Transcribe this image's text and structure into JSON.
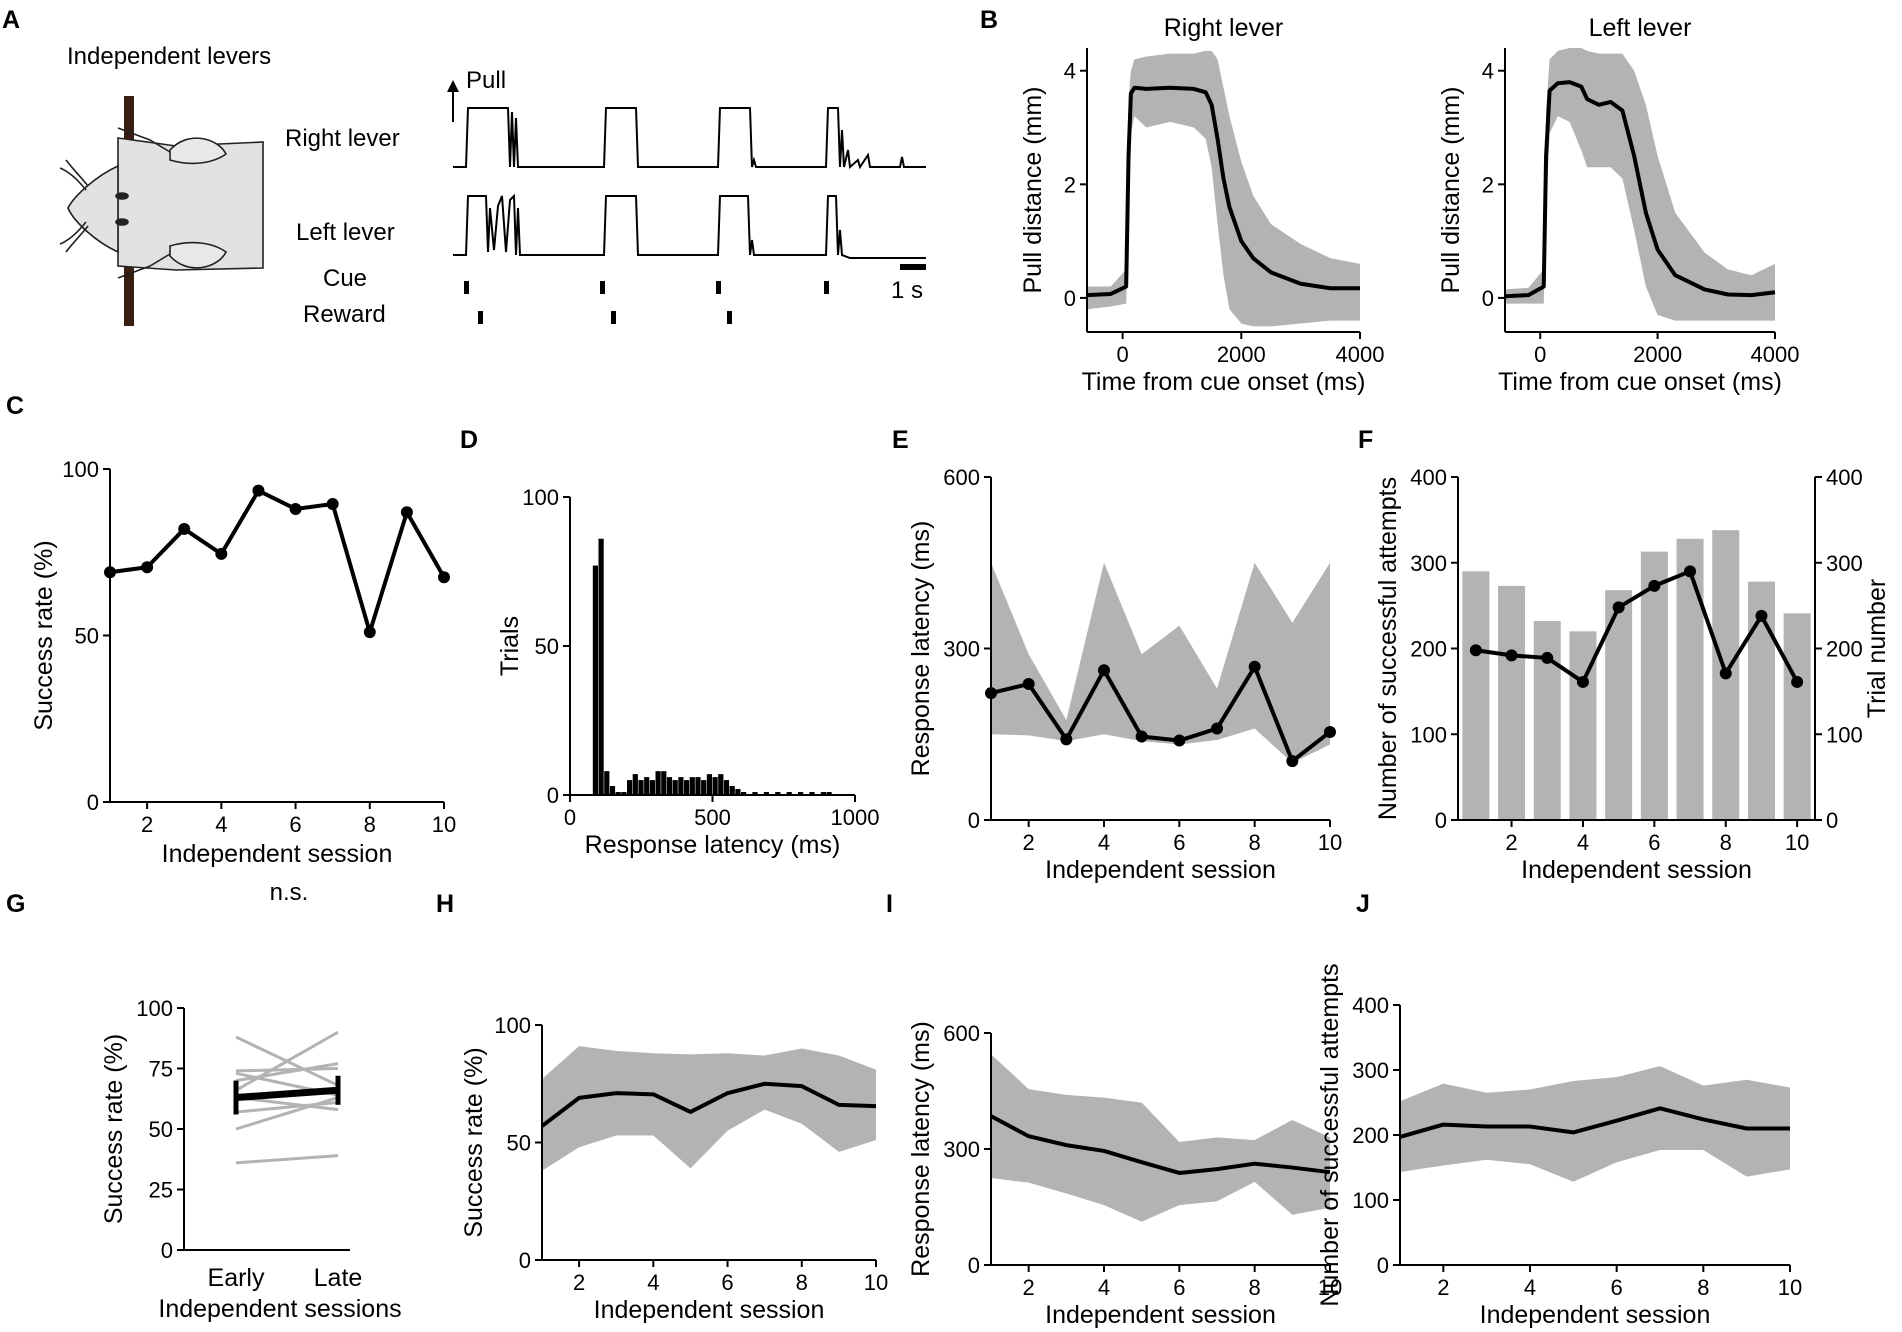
{
  "panels": {
    "A": {
      "label": "A",
      "title": "Independent levers",
      "pull_label": "Pull",
      "right_lever_label": "Right lever",
      "left_lever_label": "Left lever",
      "cue_label": "Cue",
      "reward_label": "Reward",
      "scale_label": "1 s"
    },
    "B": {
      "label": "B"
    },
    "C": {
      "label": "C"
    },
    "D": {
      "label": "D"
    },
    "E": {
      "label": "E"
    },
    "F": {
      "label": "F"
    },
    "G": {
      "label": "G"
    },
    "H": {
      "label": "H"
    },
    "I": {
      "label": "I"
    },
    "J": {
      "label": "J"
    }
  },
  "chart_data": [
    {
      "id": "B_right",
      "type": "line",
      "title": "Right lever",
      "xlabel": "Time from cue onset (ms)",
      "ylabel": "Pull distance (mm)",
      "xlim": [
        -600,
        4000
      ],
      "ylim": [
        -0.6,
        4.4
      ],
      "xticks": [
        0,
        2000,
        4000
      ],
      "yticks": [
        0,
        2,
        4
      ],
      "x": [
        -600,
        -200,
        60,
        100,
        140,
        200,
        400,
        800,
        1200,
        1400,
        1500,
        1600,
        1700,
        1800,
        2000,
        2200,
        2500,
        3000,
        3500,
        4000
      ],
      "mean": [
        0.05,
        0.07,
        0.2,
        2.5,
        3.6,
        3.7,
        3.68,
        3.7,
        3.68,
        3.62,
        3.4,
        2.8,
        2.1,
        1.6,
        1.0,
        0.7,
        0.45,
        0.25,
        0.17,
        0.17
      ],
      "upper": [
        0.2,
        0.2,
        0.5,
        3.5,
        4.0,
        4.2,
        4.25,
        4.3,
        4.3,
        4.35,
        4.35,
        4.2,
        3.7,
        3.2,
        2.4,
        1.8,
        1.3,
        0.95,
        0.7,
        0.6
      ],
      "lower": [
        -0.2,
        -0.15,
        -0.1,
        1.5,
        2.9,
        3.2,
        3.0,
        3.1,
        3.0,
        2.8,
        2.3,
        1.3,
        0.4,
        -0.2,
        -0.45,
        -0.5,
        -0.5,
        -0.45,
        -0.4,
        -0.4
      ]
    },
    {
      "id": "B_left",
      "type": "line",
      "title": "Left lever",
      "xlabel": "Time from cue onset (ms)",
      "ylabel": "Pull distance (mm)",
      "xlim": [
        -600,
        4000
      ],
      "ylim": [
        -0.6,
        4.4
      ],
      "xticks": [
        0,
        2000,
        4000
      ],
      "yticks": [
        0,
        2,
        4
      ],
      "x": [
        -600,
        -200,
        60,
        100,
        160,
        300,
        500,
        700,
        800,
        1000,
        1200,
        1400,
        1600,
        1800,
        2000,
        2300,
        2800,
        3200,
        3600,
        4000
      ],
      "mean": [
        0.03,
        0.05,
        0.2,
        2.5,
        3.65,
        3.78,
        3.8,
        3.72,
        3.5,
        3.4,
        3.45,
        3.3,
        2.5,
        1.5,
        0.85,
        0.4,
        0.15,
        0.06,
        0.05,
        0.1
      ],
      "upper": [
        0.15,
        0.18,
        0.5,
        3.3,
        4.2,
        4.35,
        4.4,
        4.4,
        4.35,
        4.3,
        4.3,
        4.3,
        4.0,
        3.4,
        2.5,
        1.5,
        0.8,
        0.5,
        0.4,
        0.6
      ],
      "lower": [
        -0.1,
        -0.1,
        -0.1,
        1.5,
        2.9,
        3.2,
        3.1,
        2.6,
        2.3,
        2.3,
        2.3,
        2.1,
        1.2,
        0.2,
        -0.3,
        -0.4,
        -0.4,
        -0.4,
        -0.4,
        -0.4
      ]
    },
    {
      "id": "C",
      "type": "line",
      "xlabel": "Independent session",
      "ylabel": "Success rate (%)",
      "xlim": [
        1,
        10
      ],
      "ylim": [
        0,
        100
      ],
      "xticks": [
        2,
        4,
        6,
        8,
        10
      ],
      "yticks": [
        0,
        50,
        100
      ],
      "x": [
        1,
        2,
        3,
        4,
        5,
        6,
        7,
        8,
        9,
        10
      ],
      "y": [
        69,
        70.5,
        82,
        74.5,
        93.5,
        88,
        89.5,
        51,
        87,
        67.5
      ]
    },
    {
      "id": "D",
      "type": "bar",
      "xlabel": "Response latency (ms)",
      "ylabel": "Trials",
      "xlim": [
        0,
        1000
      ],
      "ylim": [
        0,
        100
      ],
      "xticks": [
        0,
        500,
        1000
      ],
      "yticks": [
        0,
        50,
        100
      ],
      "bin_width": 20,
      "bins": [
        80,
        100,
        120,
        140,
        160,
        180,
        200,
        220,
        240,
        260,
        280,
        300,
        320,
        340,
        360,
        380,
        400,
        420,
        440,
        460,
        480,
        500,
        520,
        540,
        560,
        580,
        600,
        640,
        680,
        720,
        760,
        800,
        840,
        880,
        900
      ],
      "values": [
        77,
        86,
        8,
        3,
        1,
        1,
        5,
        7,
        5,
        6,
        5,
        8,
        8,
        6,
        5,
        6,
        5,
        6,
        6,
        5,
        7,
        6,
        7,
        5,
        3,
        2,
        1,
        1,
        1,
        1,
        1,
        1,
        1,
        1,
        1
      ]
    },
    {
      "id": "E",
      "type": "line",
      "xlabel": "Independent session",
      "ylabel": "Response latency (ms)",
      "xlim": [
        1,
        10
      ],
      "ylim": [
        0,
        600
      ],
      "xticks": [
        2,
        4,
        6,
        8,
        10
      ],
      "yticks": [
        0,
        300,
        600
      ],
      "x": [
        1,
        2,
        3,
        4,
        5,
        6,
        7,
        8,
        9,
        10
      ],
      "y": [
        222,
        238,
        141,
        262,
        146,
        139,
        160,
        268,
        103,
        154
      ],
      "upper": [
        450,
        290,
        175,
        450,
        290,
        340,
        230,
        450,
        345,
        450
      ],
      "lower": [
        150,
        148,
        138,
        150,
        138,
        132,
        140,
        160,
        100,
        132
      ]
    },
    {
      "id": "F",
      "type": "bar+line",
      "xlabel": "Independent session",
      "ylabel": "Number of successful attempts",
      "y2label": "Trial number",
      "xlim": [
        0.5,
        10.5
      ],
      "ylim": [
        0,
        400
      ],
      "xticks": [
        2,
        4,
        6,
        8,
        10
      ],
      "yticks": [
        0,
        100,
        200,
        300,
        400
      ],
      "x": [
        1,
        2,
        3,
        4,
        5,
        6,
        7,
        8,
        9,
        10
      ],
      "bars": [
        290,
        273,
        232,
        220,
        268,
        313,
        328,
        338,
        278,
        241
      ],
      "y": [
        198,
        192,
        189,
        161,
        248,
        273,
        290,
        171,
        238,
        161
      ]
    },
    {
      "id": "G",
      "type": "paired",
      "xlabel": "Independent sessions",
      "ylabel": "Success rate (%)",
      "categories": [
        "Early",
        "Late"
      ],
      "annotation": "n.s.",
      "ylim": [
        0,
        100
      ],
      "yticks": [
        0,
        25,
        50,
        75,
        100
      ],
      "pairs": [
        [
          36,
          39
        ],
        [
          50,
          63
        ],
        [
          57,
          61
        ],
        [
          63,
          58
        ],
        [
          66,
          90
        ],
        [
          73,
          64
        ],
        [
          74,
          75
        ],
        [
          70,
          77
        ],
        [
          88,
          68
        ]
      ],
      "mean": [
        63,
        66
      ],
      "sem": [
        7,
        6
      ]
    },
    {
      "id": "H",
      "type": "line",
      "xlabel": "Independent session",
      "ylabel": "Success rate (%)",
      "xlim": [
        1,
        10
      ],
      "ylim": [
        0,
        100
      ],
      "xticks": [
        2,
        4,
        6,
        8,
        10
      ],
      "yticks": [
        0,
        50,
        100
      ],
      "x": [
        1,
        2,
        3,
        4,
        5,
        6,
        7,
        8,
        9,
        10
      ],
      "y": [
        57,
        69,
        71,
        70.5,
        63,
        71,
        75,
        74,
        66,
        65.5
      ],
      "upper": [
        77,
        91,
        89,
        88,
        87.5,
        88,
        87,
        90,
        87,
        81
      ],
      "lower": [
        38,
        48,
        53,
        53,
        39,
        55,
        64,
        58,
        46,
        51
      ]
    },
    {
      "id": "I",
      "type": "line",
      "xlabel": "Independent session",
      "ylabel": "Response latency (ms)",
      "xlim": [
        1,
        10
      ],
      "ylim": [
        0,
        600
      ],
      "xticks": [
        2,
        4,
        6,
        8,
        10
      ],
      "yticks": [
        0,
        300,
        600
      ],
      "x": [
        1,
        2,
        3,
        4,
        5,
        6,
        7,
        8,
        9,
        10
      ],
      "y": [
        385,
        333,
        310,
        295,
        266,
        238,
        248,
        262,
        252,
        240
      ],
      "upper": [
        545,
        455,
        440,
        433,
        420,
        318,
        330,
        323,
        375,
        330
      ],
      "lower": [
        225,
        213,
        185,
        155,
        112,
        155,
        165,
        215,
        130,
        148
      ]
    },
    {
      "id": "J",
      "type": "line",
      "xlabel": "Independent session",
      "ylabel": "Number of successful attempts",
      "xlim": [
        1,
        10
      ],
      "ylim": [
        0,
        400
      ],
      "xticks": [
        2,
        4,
        6,
        8,
        10
      ],
      "yticks": [
        0,
        100,
        200,
        300,
        400
      ],
      "x": [
        1,
        2,
        3,
        4,
        5,
        6,
        7,
        8,
        9,
        10
      ],
      "y": [
        197,
        216,
        213,
        213,
        204,
        222,
        241,
        224,
        210,
        210
      ],
      "upper": [
        252,
        279,
        265,
        270,
        283,
        289,
        306,
        276,
        285,
        273
      ],
      "lower": [
        143,
        153,
        162,
        155,
        128,
        158,
        177,
        177,
        136,
        147
      ]
    }
  ]
}
